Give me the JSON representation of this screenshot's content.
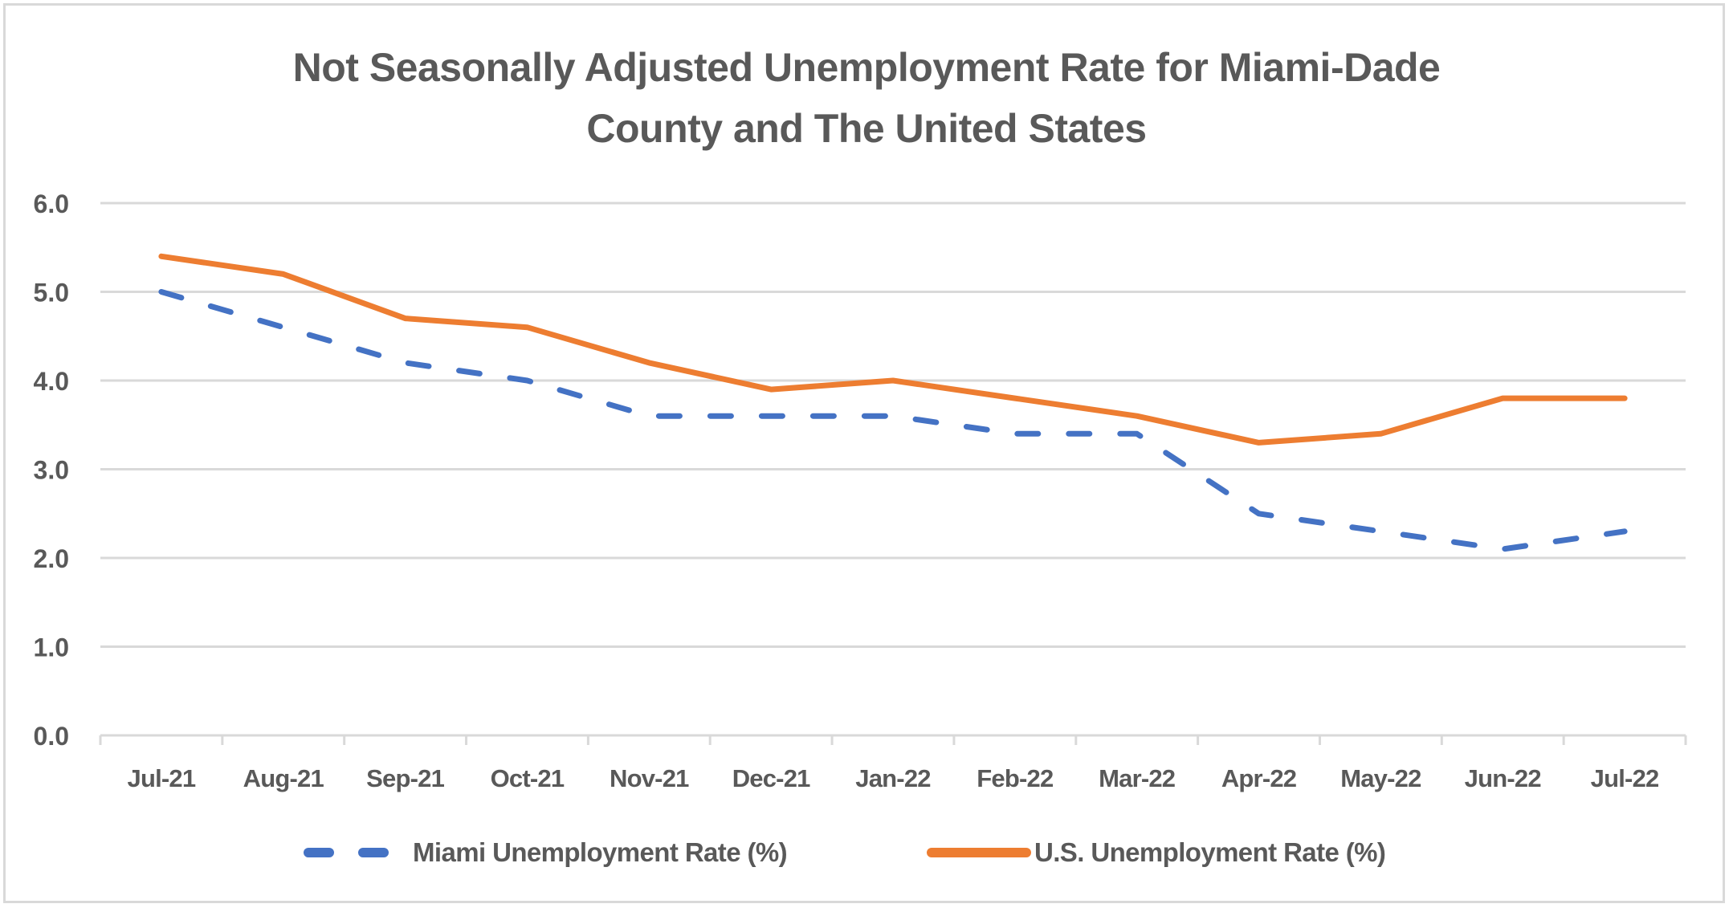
{
  "chart_data": {
    "type": "line",
    "title_lines": [
      "Not Seasonally Adjusted Unemployment Rate for Miami-Dade",
      "County and The United States"
    ],
    "title": "Not Seasonally Adjusted Unemployment Rate for Miami-Dade County and The United States",
    "xlabel": "",
    "ylabel": "",
    "categories": [
      "Jul-21",
      "Aug-21",
      "Sep-21",
      "Oct-21",
      "Nov-21",
      "Dec-21",
      "Jan-22",
      "Feb-22",
      "Mar-22",
      "Apr-22",
      "May-22",
      "Jun-22",
      "Jul-22"
    ],
    "ylim": [
      0,
      6
    ],
    "yticks": [
      "0.0",
      "1.0",
      "2.0",
      "3.0",
      "4.0",
      "5.0",
      "6.0"
    ],
    "ytick_values": [
      0,
      1,
      2,
      3,
      4,
      5,
      6
    ],
    "grid": true,
    "legend_position": "bottom",
    "series": [
      {
        "name": "Miami Unemployment Rate (%)",
        "color": "#4472C4",
        "style": "dashed",
        "values": [
          5.0,
          4.6,
          4.2,
          4.0,
          3.6,
          3.6,
          3.6,
          3.4,
          3.4,
          2.5,
          2.3,
          2.1,
          2.3
        ]
      },
      {
        "name": "U.S. Unemployment Rate (%)",
        "color": "#ED7D31",
        "style": "solid",
        "values": [
          5.4,
          5.2,
          4.7,
          4.6,
          4.2,
          3.9,
          4.0,
          3.8,
          3.6,
          3.3,
          3.4,
          3.8,
          3.8
        ]
      }
    ]
  },
  "colors": {
    "text": "#595959",
    "gridline": "#d9d9d9",
    "frame": "#d9d9d9"
  }
}
